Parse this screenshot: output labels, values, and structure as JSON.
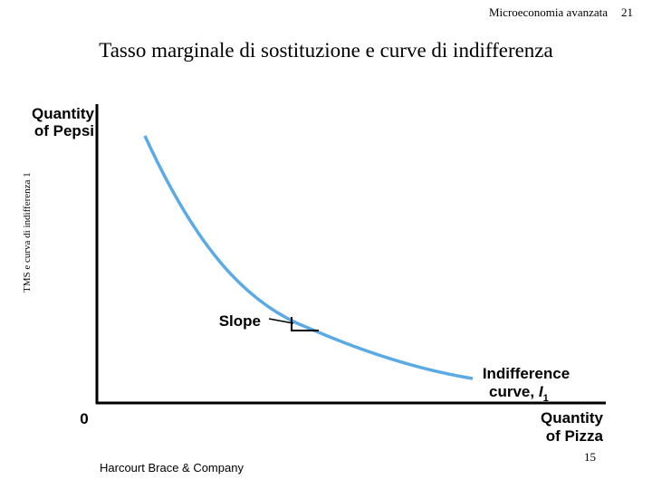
{
  "header": {
    "running_title": "Microeconomia avanzata",
    "slide_number": "21"
  },
  "title": "Tasso marginale di sostituzione e curve di indifferenza",
  "side_label": "TMS e curva di indifferenza 1",
  "diagram": {
    "y_axis_label": [
      "Quantity",
      "of Pepsi"
    ],
    "x_axis_label": [
      "Quantity",
      "of Pizza"
    ],
    "origin_label": "0",
    "slope_label": "Slope",
    "curve_label": {
      "line1": "Indifference",
      "line2": "curve,",
      "symbol": "I",
      "subscript": "1"
    }
  },
  "footer": {
    "publisher": "Harcourt Brace & Company",
    "page_number": "15"
  }
}
